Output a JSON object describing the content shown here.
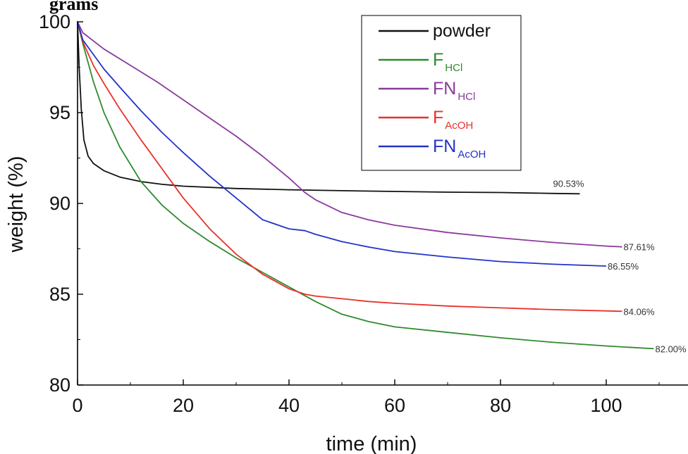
{
  "page_title": "grams",
  "chart_data": {
    "type": "line",
    "xlabel": "time (min)",
    "ylabel": "weight (%)",
    "xlim": [
      0,
      115
    ],
    "ylim": [
      80,
      100.4
    ],
    "x_ticks": [
      0,
      20,
      40,
      60,
      80,
      100
    ],
    "y_ticks": [
      80,
      85,
      90,
      95,
      100
    ],
    "grid": false,
    "legend_position": "top-center",
    "series": [
      {
        "name": "powder",
        "name_main": "powder",
        "name_sub": "",
        "color": "#111111",
        "end_label": "90.53%",
        "x": [
          0,
          0.3,
          0.7,
          1.2,
          2,
          3,
          5,
          8,
          12,
          16,
          20,
          30,
          40,
          50,
          60,
          70,
          80,
          90,
          95
        ],
        "y": [
          100,
          97.5,
          95.2,
          93.5,
          92.6,
          92.2,
          91.8,
          91.45,
          91.2,
          91.05,
          90.95,
          90.82,
          90.75,
          90.7,
          90.66,
          90.62,
          90.6,
          90.55,
          90.53
        ]
      },
      {
        "name": "FHCl",
        "name_main": "F",
        "name_sub": "HCl",
        "color": "#2e8b2e",
        "end_label": "82.00%",
        "x": [
          0,
          1,
          3,
          5,
          8,
          12,
          16,
          20,
          25,
          30,
          35,
          40,
          45,
          50,
          55,
          60,
          70,
          80,
          90,
          100,
          109
        ],
        "y": [
          100,
          98.8,
          96.7,
          95.0,
          93.1,
          91.2,
          89.9,
          88.9,
          87.9,
          87.0,
          86.2,
          85.4,
          84.6,
          83.9,
          83.5,
          83.2,
          82.9,
          82.6,
          82.35,
          82.15,
          82.0
        ]
      },
      {
        "name": "FNHCl",
        "name_main": "FN",
        "name_sub": "HCl",
        "color": "#8b3a9b",
        "end_label": "87.61%",
        "x": [
          0,
          1,
          5,
          10,
          15,
          20,
          25,
          30,
          35,
          40,
          43,
          45,
          50,
          55,
          60,
          70,
          80,
          90,
          100,
          103
        ],
        "y": [
          100,
          99.4,
          98.5,
          97.6,
          96.7,
          95.7,
          94.7,
          93.7,
          92.6,
          91.4,
          90.6,
          90.2,
          89.5,
          89.1,
          88.8,
          88.4,
          88.1,
          87.85,
          87.65,
          87.61
        ]
      },
      {
        "name": "FAcOH",
        "name_main": "F",
        "name_sub": "AcOH",
        "color": "#e8312a",
        "end_label": "84.06%",
        "x": [
          0,
          1,
          3,
          5,
          8,
          12,
          16,
          20,
          25,
          30,
          35,
          40,
          43,
          45,
          50,
          55,
          60,
          70,
          80,
          90,
          100,
          103
        ],
        "y": [
          100,
          98.9,
          97.6,
          96.6,
          95.2,
          93.5,
          91.9,
          90.3,
          88.6,
          87.2,
          86.1,
          85.3,
          85.0,
          84.9,
          84.75,
          84.6,
          84.5,
          84.35,
          84.25,
          84.15,
          84.08,
          84.06
        ]
      },
      {
        "name": "FNAcOH",
        "name_main": "FN",
        "name_sub": "AcOH",
        "color": "#2233c8",
        "end_label": "86.55%",
        "x": [
          0,
          1,
          3,
          5,
          8,
          12,
          16,
          20,
          25,
          30,
          35,
          40,
          43,
          45,
          50,
          55,
          60,
          70,
          80,
          90,
          100
        ],
        "y": [
          100,
          99.0,
          98.2,
          97.4,
          96.4,
          95.1,
          93.9,
          92.8,
          91.5,
          90.3,
          89.1,
          88.6,
          88.5,
          88.3,
          87.9,
          87.6,
          87.35,
          87.05,
          86.8,
          86.65,
          86.55
        ]
      }
    ]
  }
}
